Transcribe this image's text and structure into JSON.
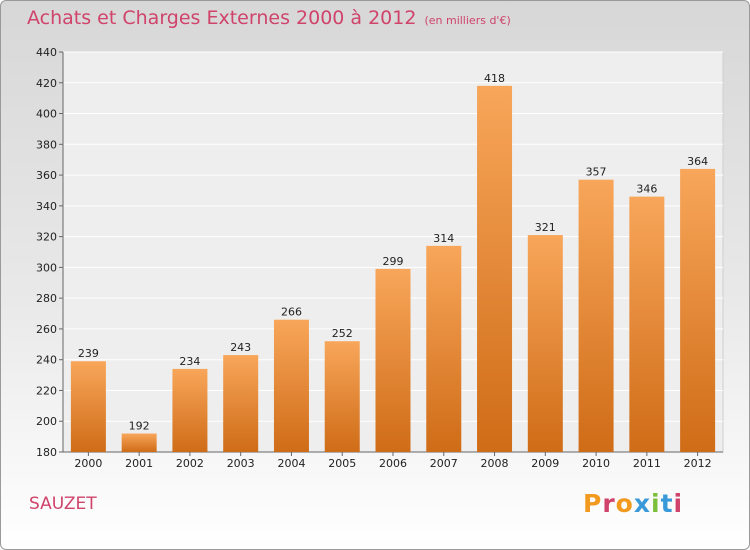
{
  "header": {
    "title": "Achats et Charges Externes 2000 à 2012",
    "subtitle": "(en milliers d'€)"
  },
  "footer": {
    "location": "SAUZET",
    "logo_text": "Proxiti"
  },
  "colors": {
    "accent": "#d0436b",
    "bar_light": "#f8a65a",
    "bar_dark": "#cf6c17",
    "logo_letters": [
      "#f29a1f",
      "#d0436b",
      "#f29a1f",
      "#3a9ad9",
      "#7bbf3a",
      "#3a9ad9",
      "#d0436b"
    ]
  },
  "chart_data": {
    "type": "bar",
    "title": "Achats et Charges Externes 2000 à 2012",
    "subtitle": "(en milliers d'€)",
    "categories": [
      "2000",
      "2001",
      "2002",
      "2003",
      "2004",
      "2005",
      "2006",
      "2007",
      "2008",
      "2009",
      "2010",
      "2011",
      "2012"
    ],
    "values": [
      239,
      192,
      234,
      243,
      266,
      252,
      299,
      314,
      418,
      321,
      357,
      346,
      364
    ],
    "xlabel": "",
    "ylabel": "",
    "ylim": [
      180,
      440
    ],
    "yticks": [
      180,
      200,
      220,
      240,
      260,
      280,
      300,
      320,
      340,
      360,
      380,
      400,
      420,
      440
    ],
    "grid": true,
    "legend": "none"
  }
}
